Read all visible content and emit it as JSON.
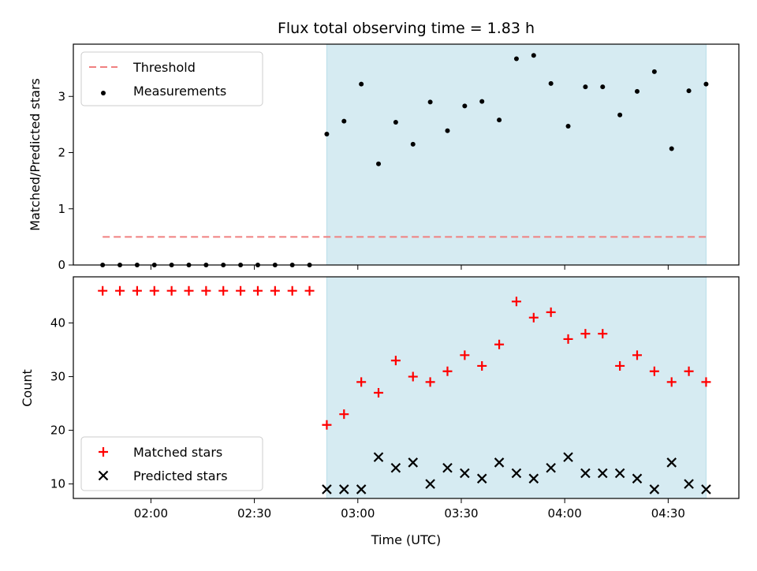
{
  "chart_data": {
    "title": "Flux total observing time = 1.83 h",
    "xlabel": "Time (UTC)",
    "x_ticks": [
      "02:00",
      "02:30",
      "03:00",
      "03:30",
      "04:00",
      "04:30"
    ],
    "x_tick_minutes": [
      120,
      150,
      180,
      210,
      240,
      270
    ],
    "x_times": [
      "01:46",
      "01:51",
      "01:56",
      "02:01",
      "02:06",
      "02:11",
      "02:16",
      "02:21",
      "02:26",
      "02:31",
      "02:36",
      "02:41",
      "02:46",
      "02:51",
      "02:56",
      "03:01",
      "03:06",
      "03:11",
      "03:16",
      "03:21",
      "03:26",
      "03:31",
      "03:36",
      "03:41",
      "03:46",
      "03:51",
      "03:56",
      "04:01",
      "04:06",
      "04:11",
      "04:16",
      "04:21",
      "04:26",
      "04:31",
      "04:36",
      "04:41"
    ],
    "shaded_span": [
      "02:51",
      "04:41"
    ],
    "shade_color": "#add8e6",
    "panels": [
      {
        "type": "scatter",
        "ylabel": "Matched/Predicted stars",
        "ylim": [
          0,
          3.93
        ],
        "y_ticks": [
          0,
          1,
          2,
          3
        ],
        "legend_position": "upper-left",
        "threshold": {
          "name": "Threshold",
          "value": 0.5,
          "color": "#f08080"
        },
        "series": [
          {
            "name": "Measurements",
            "color": "#000000",
            "marker": "dot",
            "values": [
              0,
              0,
              0,
              0,
              0,
              0,
              0,
              0,
              0,
              0,
              0,
              0,
              0,
              2.33,
              2.56,
              3.22,
              1.8,
              2.54,
              2.15,
              2.9,
              2.39,
              2.83,
              2.91,
              2.58,
              3.67,
              3.73,
              3.23,
              2.47,
              3.17,
              3.17,
              2.67,
              3.09,
              3.44,
              2.07,
              3.1,
              3.22
            ]
          }
        ]
      },
      {
        "type": "scatter",
        "ylabel": "Count",
        "ylim": [
          7.3,
          48.6
        ],
        "y_ticks": [
          10,
          20,
          30,
          40
        ],
        "legend_position": "lower-left",
        "series": [
          {
            "name": "Matched stars",
            "color": "#ff0000",
            "marker": "plus",
            "values": [
              46,
              46,
              46,
              46,
              46,
              46,
              46,
              46,
              46,
              46,
              46,
              46,
              46,
              21,
              23,
              29,
              27,
              33,
              30,
              29,
              31,
              34,
              32,
              36,
              44,
              41,
              42,
              37,
              38,
              38,
              32,
              34,
              31,
              29,
              31,
              29
            ]
          },
          {
            "name": "Predicted stars",
            "color": "#000000",
            "marker": "x",
            "values": [
              null,
              null,
              null,
              null,
              null,
              null,
              null,
              null,
              null,
              null,
              null,
              null,
              null,
              9,
              9,
              9,
              15,
              13,
              14,
              10,
              13,
              12,
              11,
              14,
              12,
              11,
              13,
              15,
              12,
              12,
              12,
              11,
              9,
              14,
              10,
              9
            ]
          }
        ]
      }
    ]
  }
}
